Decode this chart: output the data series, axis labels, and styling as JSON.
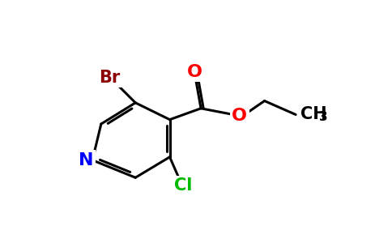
{
  "bg_color": "#ffffff",
  "atom_colors": {
    "C": "#000000",
    "N": "#0000ff",
    "O": "#ff0000",
    "Br": "#8b0000",
    "Cl": "#00bb00"
  },
  "bond_color": "#000000",
  "bond_width": 2.2,
  "font_size": 15
}
